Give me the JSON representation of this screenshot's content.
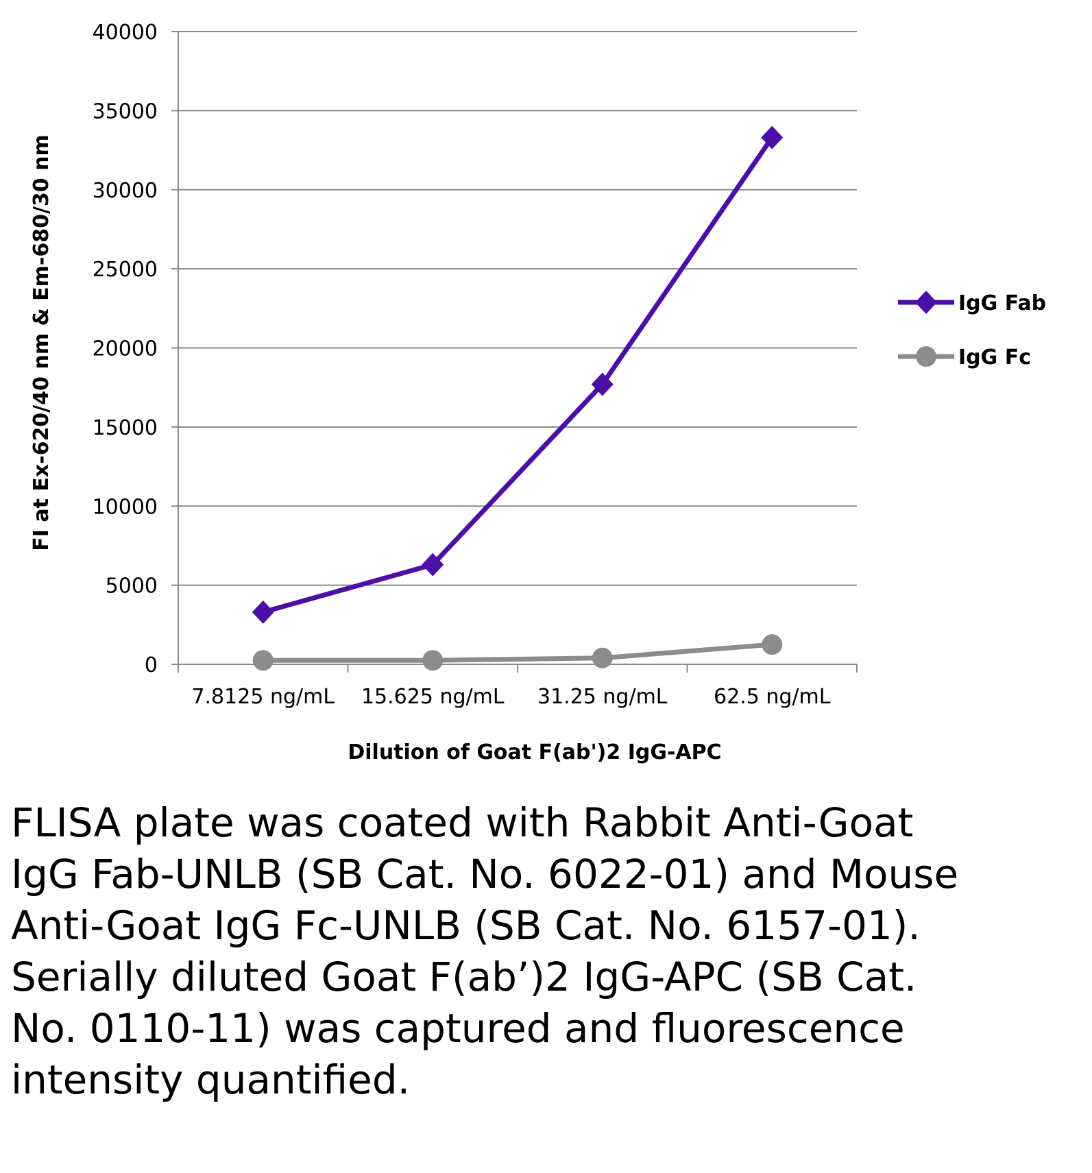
{
  "chart_data": {
    "type": "line",
    "categories": [
      "7.8125 ng/mL",
      "15.625 ng/mL",
      "31.25 ng/mL",
      "62.5 ng/mL"
    ],
    "series": [
      {
        "name": "IgG Fab",
        "color": "#4B0FA8",
        "marker": "diamond",
        "values": [
          3300,
          6300,
          17700,
          33300
        ]
      },
      {
        "name": "IgG Fc",
        "color": "#8C8C8C",
        "marker": "circle",
        "values": [
          250,
          250,
          400,
          1250
        ]
      }
    ],
    "yticks": [
      "0",
      "5000",
      "10000",
      "15000",
      "20000",
      "25000",
      "30000",
      "35000",
      "40000"
    ],
    "ylim": [
      0,
      40000
    ],
    "xlabel": "Dilution of Goat F(ab')2 IgG-APC",
    "ylabel": "FI at Ex-620/40 nm & Em-680/30 nm",
    "grid": true,
    "legend_position": "right"
  },
  "caption": "FLISA plate was coated with Rabbit Anti-Goat IgG Fab-UNLB (SB Cat. No. 6022-01) and Mouse Anti-Goat IgG Fc-UNLB (SB Cat. No. 6157-01).  Serially diluted Goat F(ab’)2 IgG-APC (SB Cat. No. 0110-11) was captured and fluorescence intensity quantified."
}
